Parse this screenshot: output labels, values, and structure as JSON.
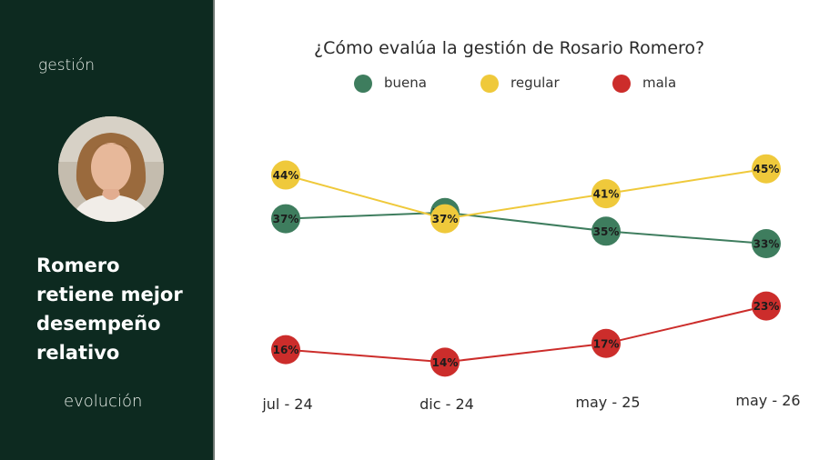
{
  "sidebar": {
    "section_label": "gestión",
    "headline_lines": [
      "Romero",
      "retiene mejor",
      "desempeño",
      "relativo"
    ],
    "footer_label": "evolución",
    "background": "#0d2a20"
  },
  "chart_data": {
    "type": "line",
    "title": "¿Cómo evalúa la gestión de Rosario Romero?",
    "categories": [
      "jul - 24",
      "dic - 24",
      "may - 25",
      "may - 26"
    ],
    "series": [
      {
        "name": "buena",
        "values": [
          37,
          38,
          35,
          33
        ],
        "labels": [
          "37%",
          "38%",
          "35%",
          "33%"
        ],
        "color": "#3e7d5e",
        "dot": "#3e7d5e"
      },
      {
        "name": "regular",
        "values": [
          44,
          37,
          41,
          45
        ],
        "labels": [
          "44%",
          "37%",
          "41%",
          "45%"
        ],
        "color": "#efc93b",
        "dot": "#efc93b"
      },
      {
        "name": "mala",
        "values": [
          16,
          14,
          17,
          23
        ],
        "labels": [
          "16%",
          "14%",
          "17%",
          "23%"
        ],
        "color": "#cc2d2b",
        "dot": "#cc2d2b"
      }
    ],
    "legend_position": "top",
    "grid": false
  }
}
